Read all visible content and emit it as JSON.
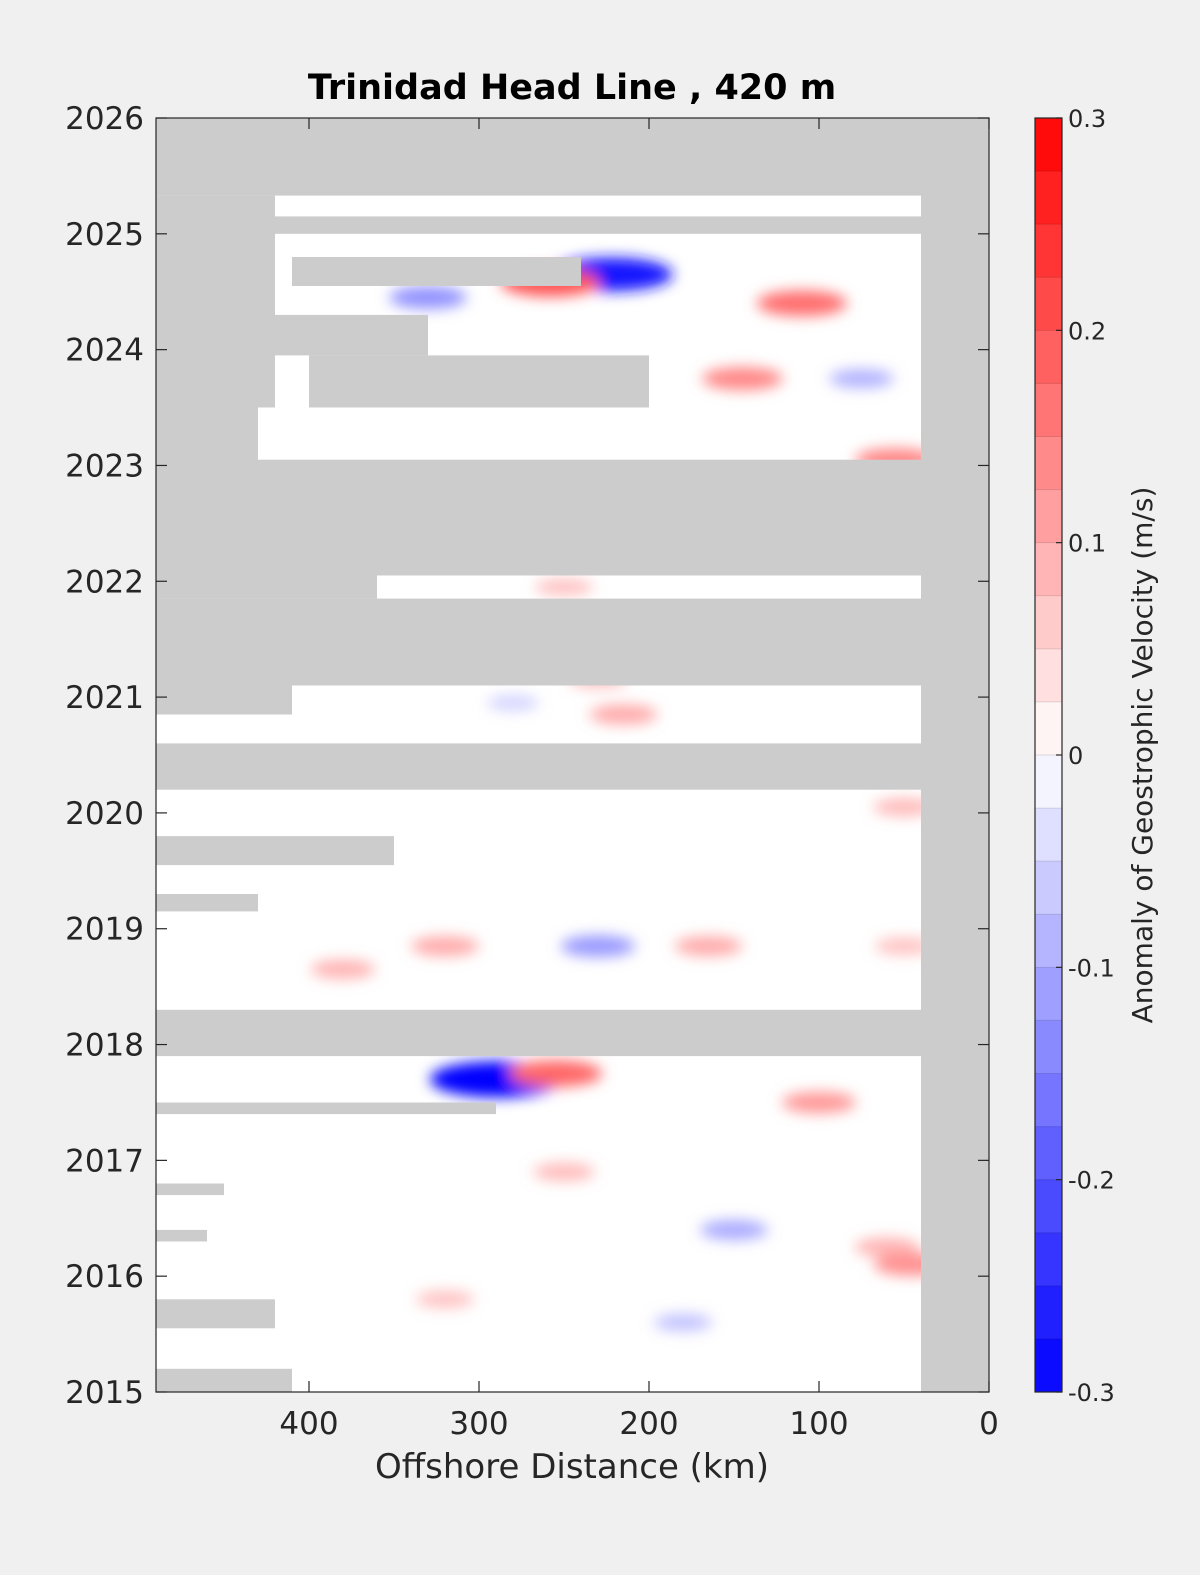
{
  "chart_data": {
    "type": "heatmap",
    "title": "Trinidad Head Line , 420 m",
    "xlabel": "Offshore Distance (km)",
    "ylabel": "",
    "colorbar_label": "Anomaly of Geostrophic Velocity (m/s)",
    "xlim": [
      490,
      0
    ],
    "ylim": [
      2015,
      2026
    ],
    "x_ticks": [
      400,
      300,
      200,
      100,
      0
    ],
    "x_tick_labels": [
      "400",
      "300",
      "200",
      "100",
      "0"
    ],
    "y_ticks": [
      2015,
      2016,
      2017,
      2018,
      2019,
      2020,
      2021,
      2022,
      2023,
      2024,
      2025,
      2026
    ],
    "y_tick_labels": [
      "2015",
      "2016",
      "2017",
      "2018",
      "2019",
      "2020",
      "2021",
      "2022",
      "2023",
      "2024",
      "2025",
      "2026"
    ],
    "clim": [
      -0.3,
      0.3
    ],
    "colorbar_ticks": [
      0.3,
      0.2,
      0.1,
      0,
      -0.1,
      -0.2,
      -0.3
    ],
    "colorbar_tick_labels": [
      "0.3",
      "0.2",
      "0.1",
      "0",
      "-0.1",
      "-0.2",
      "-0.3"
    ],
    "colorbar_levels": 24,
    "colormap": "blue-white-red",
    "nodata_color": "#cccccc",
    "grid": false,
    "nodata_regions": [
      {
        "x0": 490,
        "x1": 0,
        "y0": 2025.33,
        "y1": 2026
      },
      {
        "x0": 40,
        "x1": 0,
        "y0": 2015,
        "y1": 2026
      },
      {
        "x0": 490,
        "x1": 420,
        "y0": 2023.5,
        "y1": 2025.33
      },
      {
        "x0": 490,
        "x1": 430,
        "y0": 2023.0,
        "y1": 2023.5
      },
      {
        "x0": 420,
        "x1": 40,
        "y0": 2025.0,
        "y1": 2025.15
      },
      {
        "x0": 410,
        "x1": 240,
        "y0": 2024.55,
        "y1": 2024.8
      },
      {
        "x0": 420,
        "x1": 330,
        "y0": 2023.95,
        "y1": 2024.3
      },
      {
        "x0": 400,
        "x1": 200,
        "y0": 2023.5,
        "y1": 2023.95
      },
      {
        "x0": 490,
        "x1": 40,
        "y0": 2023.05,
        "y1": 2023.05
      },
      {
        "x0": 490,
        "x1": 0,
        "y0": 2022.05,
        "y1": 2023.05
      },
      {
        "x0": 490,
        "x1": 360,
        "y0": 2021.85,
        "y1": 2022.05
      },
      {
        "x0": 490,
        "x1": 40,
        "y0": 2021.1,
        "y1": 2021.85
      },
      {
        "x0": 490,
        "x1": 410,
        "y0": 2020.85,
        "y1": 2021.1
      },
      {
        "x0": 490,
        "x1": 40,
        "y0": 2020.2,
        "y1": 2020.6
      },
      {
        "x0": 490,
        "x1": 350,
        "y0": 2019.55,
        "y1": 2019.8
      },
      {
        "x0": 490,
        "x1": 430,
        "y0": 2019.15,
        "y1": 2019.3
      },
      {
        "x0": 490,
        "x1": 40,
        "y0": 2017.9,
        "y1": 2018.3
      },
      {
        "x0": 490,
        "x1": 290,
        "y0": 2017.4,
        "y1": 2017.5
      },
      {
        "x0": 490,
        "x1": 450,
        "y0": 2016.7,
        "y1": 2016.8
      },
      {
        "x0": 490,
        "x1": 460,
        "y0": 2016.3,
        "y1": 2016.4
      },
      {
        "x0": 490,
        "x1": 420,
        "y0": 2015.55,
        "y1": 2015.8
      },
      {
        "x0": 490,
        "x1": 410,
        "y0": 2015.0,
        "y1": 2015.2
      }
    ],
    "anomalies": [
      {
        "x": 222,
        "y": 2024.65,
        "value": -0.27
      },
      {
        "x": 258,
        "y": 2024.58,
        "value": 0.2
      },
      {
        "x": 330,
        "y": 2024.45,
        "value": -0.13
      },
      {
        "x": 110,
        "y": 2024.4,
        "value": 0.17
      },
      {
        "x": 145,
        "y": 2023.75,
        "value": 0.14
      },
      {
        "x": 75,
        "y": 2023.75,
        "value": -0.09
      },
      {
        "x": 55,
        "y": 2023.05,
        "value": 0.14
      },
      {
        "x": 250,
        "y": 2021.95,
        "value": 0.07
      },
      {
        "x": 230,
        "y": 2021.15,
        "value": 0.07
      },
      {
        "x": 215,
        "y": 2020.85,
        "value": 0.1
      },
      {
        "x": 280,
        "y": 2020.95,
        "value": -0.05
      },
      {
        "x": 50,
        "y": 2020.05,
        "value": 0.08
      },
      {
        "x": 230,
        "y": 2018.85,
        "value": -0.12
      },
      {
        "x": 320,
        "y": 2018.85,
        "value": 0.1
      },
      {
        "x": 380,
        "y": 2018.65,
        "value": 0.09
      },
      {
        "x": 165,
        "y": 2018.85,
        "value": 0.1
      },
      {
        "x": 50,
        "y": 2018.85,
        "value": 0.07
      },
      {
        "x": 290,
        "y": 2017.7,
        "value": -0.3
      },
      {
        "x": 255,
        "y": 2017.75,
        "value": 0.18
      },
      {
        "x": 100,
        "y": 2017.5,
        "value": 0.12
      },
      {
        "x": 150,
        "y": 2016.4,
        "value": -0.1
      },
      {
        "x": 250,
        "y": 2016.9,
        "value": 0.08
      },
      {
        "x": 60,
        "y": 2016.25,
        "value": 0.09
      },
      {
        "x": 45,
        "y": 2016.1,
        "value": 0.13
      },
      {
        "x": 180,
        "y": 2015.6,
        "value": -0.07
      },
      {
        "x": 320,
        "y": 2015.8,
        "value": 0.07
      }
    ]
  }
}
